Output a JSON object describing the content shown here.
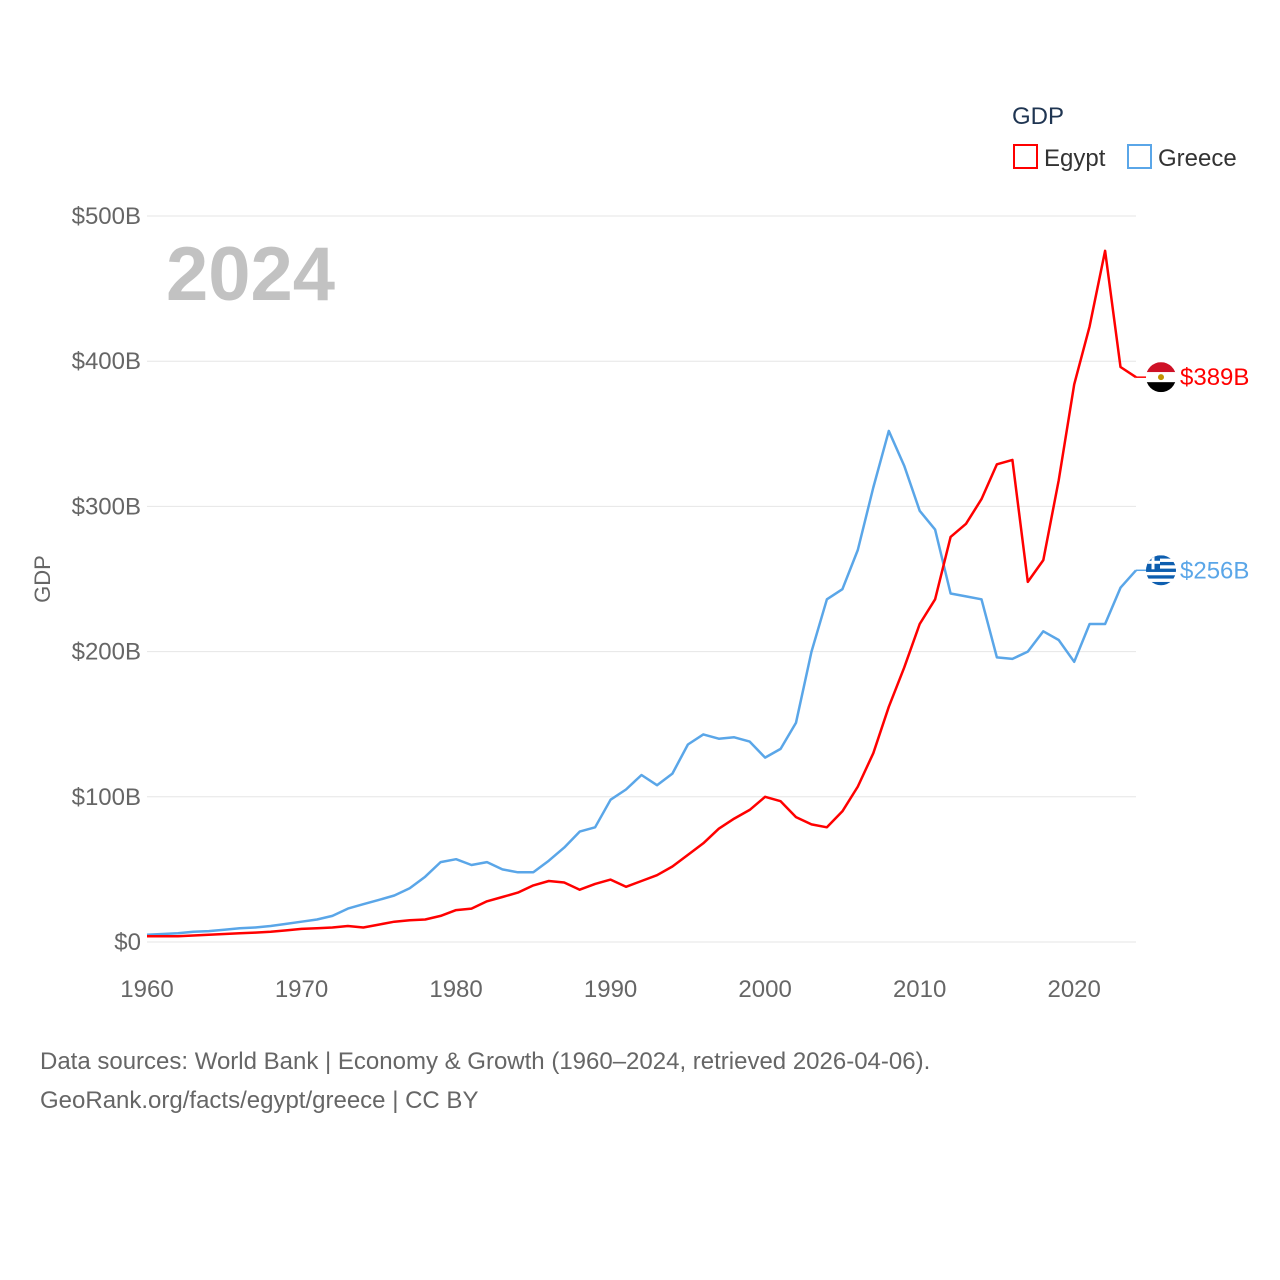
{
  "chart_data": {
    "type": "line",
    "title": "2024",
    "xlabel": "",
    "ylabel": "GDP",
    "xlim": [
      1960,
      2024
    ],
    "ylim": [
      0,
      500
    ],
    "x_ticks": [
      1960,
      1970,
      1980,
      1990,
      2000,
      2010,
      2020
    ],
    "x_tick_labels": [
      "1960",
      "1970",
      "1980",
      "1990",
      "2000",
      "2010",
      "2020"
    ],
    "y_ticks": [
      0,
      100,
      200,
      300,
      400,
      500
    ],
    "y_tick_labels": [
      "$0",
      "$100B",
      "$200B",
      "$300B",
      "$400B",
      "$500B"
    ],
    "grid": true,
    "legend_title": "GDP",
    "legend_position": "top-right",
    "x": [
      1960,
      1961,
      1962,
      1963,
      1964,
      1965,
      1966,
      1967,
      1968,
      1969,
      1970,
      1971,
      1972,
      1973,
      1974,
      1975,
      1976,
      1977,
      1978,
      1979,
      1980,
      1981,
      1982,
      1983,
      1984,
      1985,
      1986,
      1987,
      1988,
      1989,
      1990,
      1991,
      1992,
      1993,
      1994,
      1995,
      1996,
      1997,
      1998,
      1999,
      2000,
      2001,
      2002,
      2003,
      2004,
      2005,
      2006,
      2007,
      2008,
      2009,
      2010,
      2011,
      2012,
      2013,
      2014,
      2015,
      2016,
      2017,
      2018,
      2019,
      2020,
      2021,
      2022,
      2023,
      2024
    ],
    "series": [
      {
        "name": "Egypt",
        "color": "#ff0000",
        "end_label": "$389B",
        "flag": "egypt-flag",
        "values": [
          4,
          4,
          4,
          4.5,
          5,
          5.5,
          6,
          6.5,
          7,
          8,
          9,
          9.5,
          10,
          11,
          10,
          12,
          14,
          15,
          15.5,
          18,
          22,
          23,
          28,
          31,
          34,
          39,
          42,
          41,
          36,
          40,
          43,
          38,
          42,
          46,
          52,
          60,
          68,
          78,
          85,
          91,
          100,
          97,
          86,
          81,
          79,
          90,
          107,
          130,
          162,
          189,
          219,
          236,
          279,
          288,
          305,
          329,
          332,
          248,
          263,
          318,
          384,
          424,
          476,
          396,
          389
        ]
      },
      {
        "name": "Greece",
        "color": "#5aa6e8",
        "end_label": "$256B",
        "flag": "greece-flag",
        "values": [
          5,
          5.5,
          6,
          7,
          7.5,
          8.5,
          9.5,
          10,
          11,
          12.5,
          14,
          15.5,
          18,
          23,
          26,
          29,
          32,
          37,
          45,
          55,
          57,
          53,
          55,
          50,
          48,
          48,
          56,
          65,
          76,
          79,
          98,
          105,
          115,
          108,
          116,
          136,
          143,
          140,
          141,
          138,
          127,
          133,
          151,
          200,
          236,
          243,
          270,
          313,
          352,
          328,
          297,
          284,
          240,
          238,
          236,
          196,
          195,
          200,
          214,
          208,
          193,
          219,
          219,
          244,
          256
        ]
      }
    ]
  },
  "footer": {
    "line1": "Data sources: World Bank | Economy & Growth (1960–2024, retrieved 2026-04-06).",
    "line2": "GeoRank.org/facts/egypt/greece | CC BY"
  }
}
